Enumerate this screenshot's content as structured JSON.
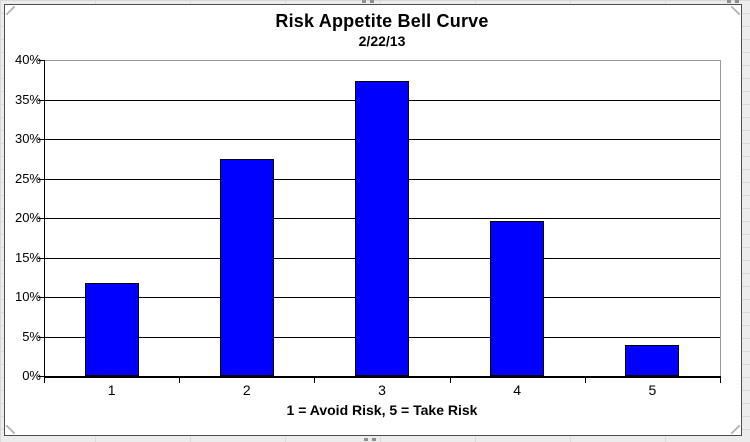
{
  "chart_data": {
    "type": "bar",
    "title": "Risk Appetite Bell Curve",
    "subtitle": "2/22/13",
    "xlabel": "1 = Avoid Risk, 5 = Take Risk",
    "ylabel": "",
    "categories": [
      "1",
      "2",
      "3",
      "4",
      "5"
    ],
    "values": [
      11.8,
      27.5,
      37.3,
      19.6,
      3.9
    ],
    "ylim": [
      0,
      40
    ],
    "ytick_step": 5,
    "ytick_labels": [
      "0%",
      "5%",
      "10%",
      "15%",
      "20%",
      "25%",
      "30%",
      "35%",
      "40%"
    ],
    "grid": true,
    "legend": false,
    "colors": {
      "bar_fill": "#0000ff",
      "bar_border": "#000000",
      "gridline": "#000000",
      "plot_border": "#9a9a9a",
      "text": "#000000",
      "chart_background": "#ffffff",
      "spreadsheet_background": "#ececec"
    }
  }
}
